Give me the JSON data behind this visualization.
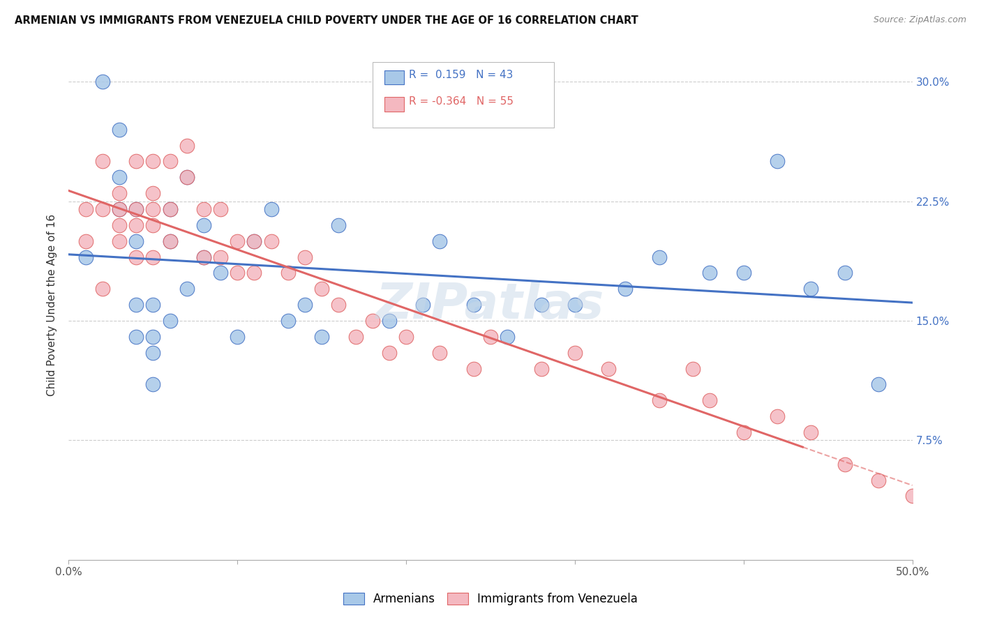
{
  "title": "ARMENIAN VS IMMIGRANTS FROM VENEZUELA CHILD POVERTY UNDER THE AGE OF 16 CORRELATION CHART",
  "source": "Source: ZipAtlas.com",
  "ylabel_label": "Child Poverty Under the Age of 16",
  "xlim": [
    0.0,
    0.5
  ],
  "ylim": [
    0.0,
    0.32
  ],
  "xticks": [
    0.0,
    0.1,
    0.2,
    0.3,
    0.4,
    0.5
  ],
  "xticklabels": [
    "0.0%",
    "",
    "",
    "",
    "",
    "50.0%"
  ],
  "yticks": [
    0.0,
    0.075,
    0.15,
    0.225,
    0.3
  ],
  "yticklabels_right": [
    "",
    "7.5%",
    "15.0%",
    "22.5%",
    "30.0%"
  ],
  "armenian_R": 0.159,
  "armenian_N": 43,
  "venezuela_R": -0.364,
  "venezuela_N": 55,
  "blue_scatter": "#a8c8e8",
  "pink_scatter": "#f4b8c0",
  "line_blue": "#4472c4",
  "line_pink": "#e06666",
  "legend_label_armenian": "Armenians",
  "legend_label_venezuela": "Immigrants from Venezuela",
  "armenian_x": [
    0.01,
    0.02,
    0.03,
    0.03,
    0.03,
    0.04,
    0.04,
    0.04,
    0.05,
    0.05,
    0.05,
    0.06,
    0.06,
    0.07,
    0.08,
    0.09,
    0.1,
    0.11,
    0.12,
    0.13,
    0.15,
    0.19,
    0.21,
    0.24,
    0.28,
    0.3,
    0.33,
    0.35,
    0.38,
    0.4,
    0.42,
    0.44,
    0.46,
    0.04,
    0.05,
    0.06,
    0.07,
    0.08,
    0.14,
    0.16,
    0.22,
    0.26,
    0.48
  ],
  "armenian_y": [
    0.19,
    0.3,
    0.27,
    0.24,
    0.22,
    0.2,
    0.22,
    0.16,
    0.16,
    0.13,
    0.14,
    0.2,
    0.22,
    0.24,
    0.21,
    0.18,
    0.14,
    0.2,
    0.22,
    0.15,
    0.14,
    0.15,
    0.16,
    0.16,
    0.16,
    0.16,
    0.17,
    0.19,
    0.18,
    0.18,
    0.25,
    0.17,
    0.18,
    0.14,
    0.11,
    0.15,
    0.17,
    0.19,
    0.16,
    0.21,
    0.2,
    0.14,
    0.11
  ],
  "venezuela_x": [
    0.01,
    0.01,
    0.02,
    0.02,
    0.02,
    0.03,
    0.03,
    0.03,
    0.03,
    0.04,
    0.04,
    0.04,
    0.04,
    0.05,
    0.05,
    0.05,
    0.05,
    0.05,
    0.06,
    0.06,
    0.06,
    0.07,
    0.07,
    0.08,
    0.08,
    0.09,
    0.09,
    0.1,
    0.1,
    0.11,
    0.11,
    0.12,
    0.13,
    0.14,
    0.15,
    0.16,
    0.17,
    0.18,
    0.19,
    0.2,
    0.22,
    0.24,
    0.25,
    0.28,
    0.3,
    0.32,
    0.35,
    0.37,
    0.38,
    0.4,
    0.42,
    0.44,
    0.46,
    0.48,
    0.5
  ],
  "venezuela_y": [
    0.2,
    0.22,
    0.17,
    0.22,
    0.25,
    0.21,
    0.23,
    0.2,
    0.22,
    0.21,
    0.25,
    0.19,
    0.22,
    0.25,
    0.22,
    0.19,
    0.21,
    0.23,
    0.25,
    0.22,
    0.2,
    0.24,
    0.26,
    0.19,
    0.22,
    0.19,
    0.22,
    0.2,
    0.18,
    0.18,
    0.2,
    0.2,
    0.18,
    0.19,
    0.17,
    0.16,
    0.14,
    0.15,
    0.13,
    0.14,
    0.13,
    0.12,
    0.14,
    0.12,
    0.13,
    0.12,
    0.1,
    0.12,
    0.1,
    0.08,
    0.09,
    0.08,
    0.06,
    0.05,
    0.04
  ],
  "background_color": "#ffffff",
  "grid_color": "#cccccc",
  "watermark": "ZIPatlas"
}
